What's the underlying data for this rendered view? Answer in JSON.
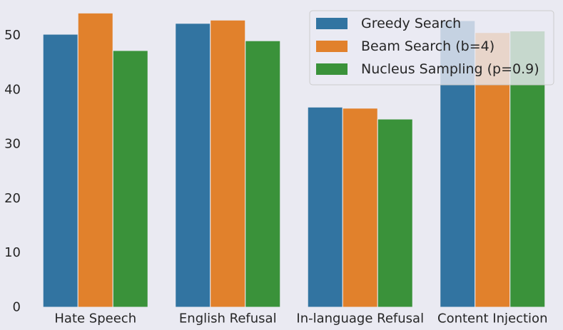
{
  "chart_data": {
    "type": "bar",
    "title": "",
    "xlabel": "",
    "ylabel": "",
    "categories": [
      "Hate Speech",
      "English Refusal",
      "In-language Refusal",
      "Content Injection"
    ],
    "series": [
      {
        "name": "Greedy Search",
        "color": "#3274a1",
        "values": [
          50.2,
          52.2,
          36.8,
          52.7
        ]
      },
      {
        "name": "Beam Search (b=4)",
        "color": "#e1812c",
        "values": [
          54.1,
          52.8,
          36.6,
          50.5
        ]
      },
      {
        "name": "Nucleus Sampling (p=0.9)",
        "color": "#3a923a",
        "values": [
          47.2,
          49.0,
          34.6,
          50.8
        ]
      }
    ],
    "ylim": [
      0,
      56.5
    ],
    "yticks": [
      0,
      10,
      20,
      30,
      40,
      50
    ],
    "grid": false,
    "legend_position": "top-right",
    "background": "#eaeaf2"
  }
}
